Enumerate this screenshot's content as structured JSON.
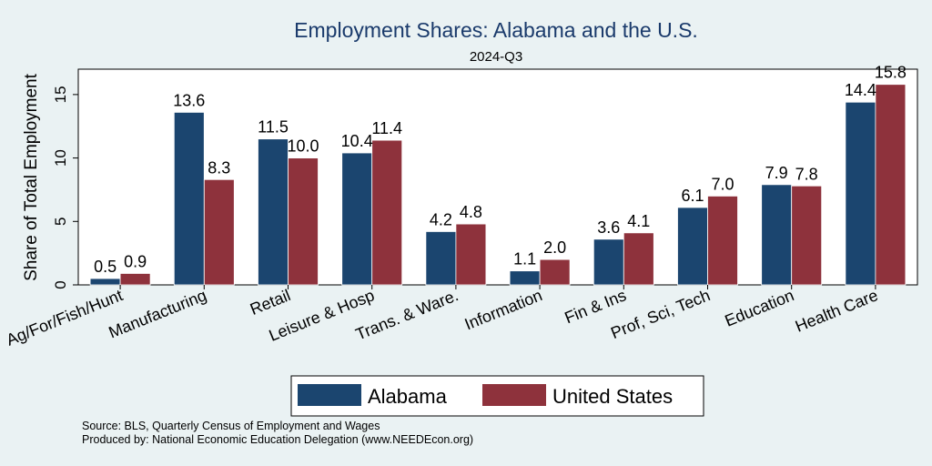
{
  "chart_data": {
    "type": "bar",
    "title": "Employment Shares: Alabama and the U.S.",
    "subtitle": "2024-Q3",
    "ylabel": "Share of Total Employment",
    "ylim": [
      0,
      17
    ],
    "yticks": [
      0,
      5,
      10,
      15
    ],
    "grid": false,
    "legend_placement": "bottom",
    "categories": [
      "Ag/For/Fish/Hunt",
      "Manufacturing",
      "Retail",
      "Leisure & Hosp",
      "Trans. & Ware.",
      "Information",
      "Fin & Ins",
      "Prof, Sci, Tech",
      "Education",
      "Health Care"
    ],
    "series": [
      {
        "name": "Alabama",
        "color": "#1b456f",
        "values": [
          0.5,
          13.6,
          11.5,
          10.4,
          4.2,
          1.1,
          3.6,
          6.1,
          7.9,
          14.4
        ]
      },
      {
        "name": "United States",
        "color": "#8e323c",
        "values": [
          0.9,
          8.3,
          10.0,
          11.4,
          4.8,
          2.0,
          4.1,
          7.0,
          7.8,
          15.8
        ]
      }
    ],
    "notes": [
      "Source: BLS, Quarterly Census of Employment and Wages",
      "Produced by: National Economic Education Delegation (www.NEEDEcon.org)"
    ]
  }
}
